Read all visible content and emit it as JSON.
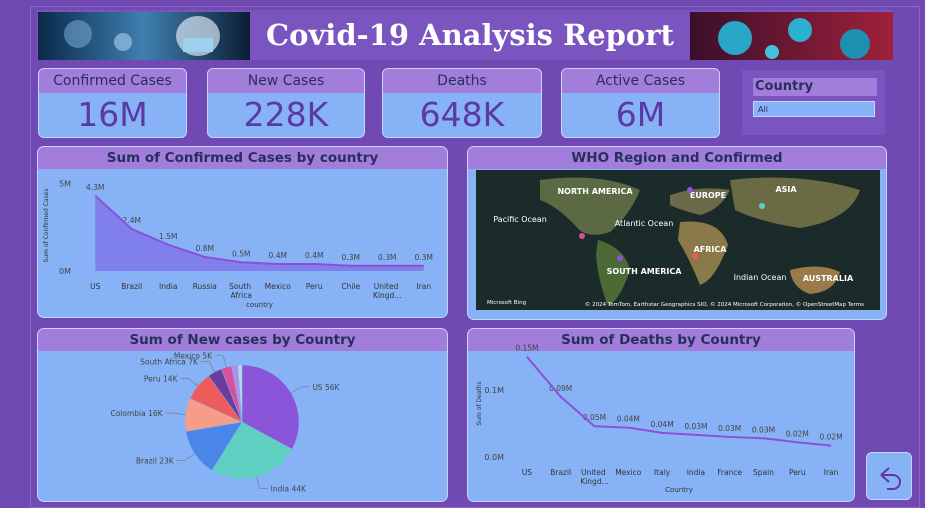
{
  "header": {
    "title": "Covid-19 Analysis Report"
  },
  "cards": [
    {
      "label": "Confirmed Cases",
      "value": "16M"
    },
    {
      "label": "New Cases",
      "value": "228K"
    },
    {
      "label": "Deaths",
      "value": "648K"
    },
    {
      "label": "Active Cases",
      "value": "6M"
    }
  ],
  "slicer": {
    "label": "Country",
    "selected": "All"
  },
  "map": {
    "title": "WHO Region and Confirmed",
    "labels": [
      "NORTH AMERICA",
      "EUROPE",
      "ASIA",
      "Pacific Ocean",
      "Atlantic Ocean",
      "AFRICA",
      "SOUTH AMERICA",
      "Indian Ocean",
      "AUSTRALIA"
    ],
    "provider": "Microsoft Bing",
    "attribution": "© 2024 TomTom, Earthstar Geographics SIO, © 2024 Microsoft Corporation, © OpenStreetMap  Terms"
  },
  "chart_data": [
    {
      "type": "area",
      "title": "Sum of Confirmed Cases by country",
      "y_label": "Sum of Confirmed Cases",
      "x_label": "country",
      "categories": [
        "US",
        "Brazil",
        "India",
        "Russia",
        "South Africa",
        "Mexico",
        "Peru",
        "Chile",
        "United Kingd...",
        "Iran"
      ],
      "values": [
        4300000,
        2400000,
        1500000,
        800000,
        500000,
        400000,
        400000,
        300000,
        300000,
        300000
      ],
      "value_labels": [
        "4.3M",
        "2.4M",
        "1.5M",
        "0.8M",
        "0.5M",
        "0.4M",
        "0.4M",
        "0.3M",
        "0.3M",
        "0.3M"
      ],
      "color": "#7f77ea",
      "line_color": "#8d4fd6",
      "ylim": [
        0,
        5200000
      ],
      "yticks": [
        {
          "value": 0,
          "label": "0M"
        },
        {
          "value": 5000000,
          "label": "5M"
        }
      ],
      "grid": false
    },
    {
      "type": "pie",
      "title": "Sum of New cases by Country",
      "categories": [
        "US",
        "India",
        "Brazil",
        "Colombia",
        "Peru",
        "South Africa",
        "Mexico",
        null,
        null
      ],
      "values": [
        56000,
        44000,
        23000,
        16000,
        14000,
        7000,
        5000,
        3000,
        2000
      ],
      "value_labels": [
        "56K",
        "44K",
        "23K",
        "16K",
        "14K",
        "7K",
        "5K",
        null,
        null
      ],
      "colors": [
        "#8a55d9",
        "#5fcfc2",
        "#4a86e8",
        "#f79c86",
        "#ee5b5b",
        "#6a3d9a",
        "#d9509a",
        "#b18ee8",
        "#a8e6dc"
      ]
    },
    {
      "type": "line",
      "title": "Sum of Deaths by Country",
      "y_label": "Sum of Deaths",
      "x_label": "Country",
      "categories": [
        "US",
        "Brazil",
        "United Kingd...",
        "Mexico",
        "Italy",
        "India",
        "France",
        "Spain",
        "Peru",
        "Iran"
      ],
      "values": [
        150000,
        90000,
        46000,
        44000,
        36000,
        33000,
        30000,
        28000,
        22000,
        17000
      ],
      "value_labels": [
        "0.15M",
        "0.09M",
        "0.05M",
        "0.04M",
        "0.04M",
        "0.03M",
        "0.03M",
        "0.03M",
        "0.02M",
        "0.02M"
      ],
      "color": "#8d4fd6",
      "ylim": [
        0,
        160000
      ],
      "yticks": [
        {
          "value": 0,
          "label": "0.0M"
        },
        {
          "value": 100000,
          "label": "0.1M"
        }
      ],
      "grid": false
    }
  ]
}
